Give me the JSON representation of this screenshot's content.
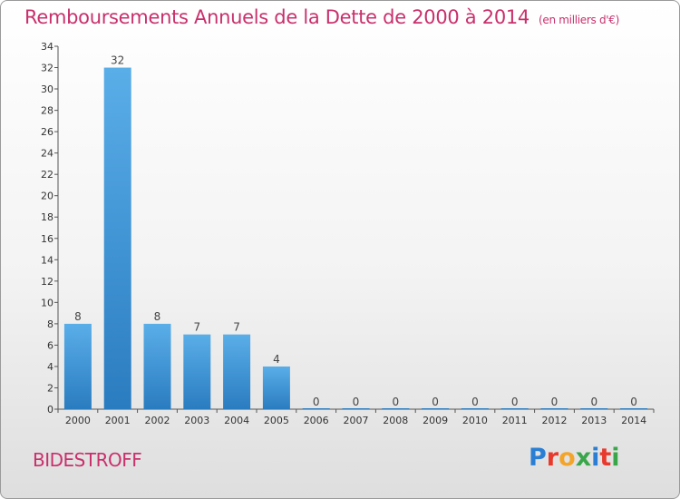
{
  "header": {
    "title": "Remboursements Annuels de la Dette de 2000 à 2014",
    "unit": "(en milliers d'€)"
  },
  "footer": {
    "city": "BIDESTROFF",
    "logo_letters": [
      "P",
      "r",
      "o",
      "x",
      "i",
      "t",
      "i"
    ],
    "logo_colors": [
      "#2a7fd4",
      "#e8392c",
      "#f3a52a",
      "#3aa64a",
      "#2a7fd4",
      "#e8392c",
      "#3aa64a"
    ]
  },
  "colors": {
    "bar_light": "#5aaee8",
    "bar_dark": "#2a7cc0",
    "title": "#c9306b"
  },
  "chart_data": {
    "type": "bar",
    "categories": [
      "2000",
      "2001",
      "2002",
      "2003",
      "2004",
      "2005",
      "2006",
      "2007",
      "2008",
      "2009",
      "2010",
      "2011",
      "2012",
      "2013",
      "2014"
    ],
    "values": [
      8,
      32,
      8,
      7,
      7,
      4,
      0,
      0,
      0,
      0,
      0,
      0,
      0,
      0,
      0
    ],
    "data_labels": [
      "8",
      "32",
      "8",
      "7",
      "7",
      "4",
      "0",
      "0",
      "0",
      "0",
      "0",
      "0",
      "0",
      "0",
      "0"
    ],
    "ylim": [
      0,
      34
    ],
    "yticks": [
      0,
      2,
      4,
      6,
      8,
      10,
      12,
      14,
      16,
      18,
      20,
      22,
      24,
      26,
      28,
      30,
      32,
      34
    ],
    "grid": false,
    "legend": "none"
  }
}
